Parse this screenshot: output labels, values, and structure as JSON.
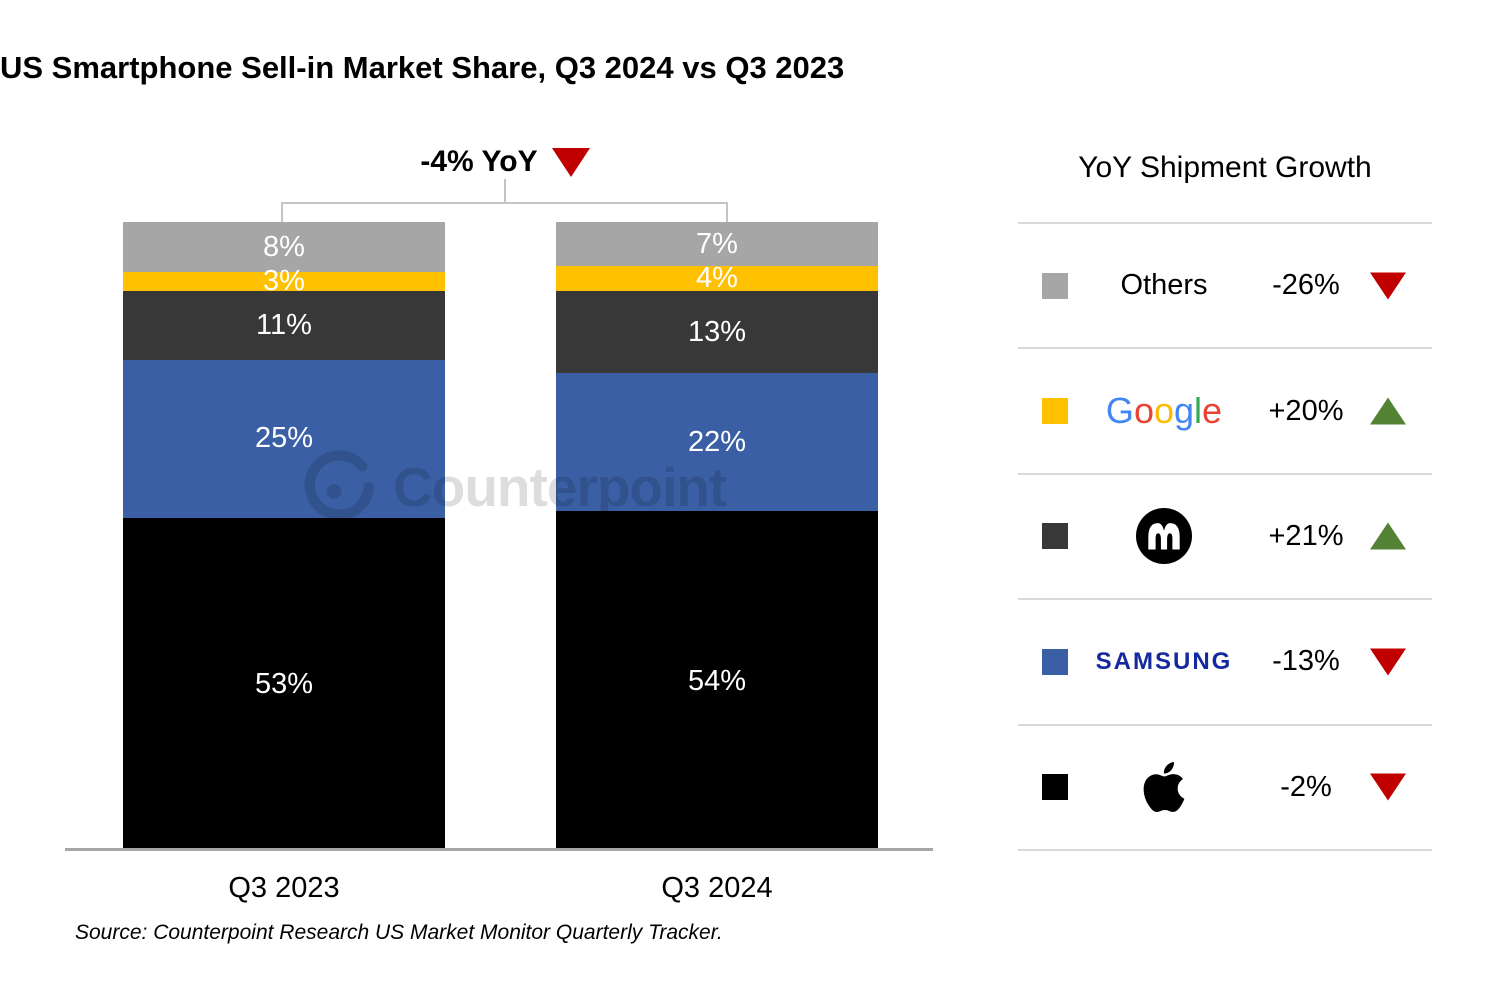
{
  "title": "US Smartphone Sell-in Market Share, Q3 2024 vs Q3 2023",
  "yoy_annotation": {
    "label": "-4% YoY",
    "direction": "down"
  },
  "legend_header": "YoY Shipment Growth",
  "watermark": "Counterpoint",
  "source": "Source: Counterpoint Research US Market Monitor Quarterly Tracker.",
  "colors": {
    "apple": "#000000",
    "samsung": "#3A5FA4",
    "motorola": "#383838",
    "google": "#FFC000",
    "others": "#A6A6A6",
    "negative_triangle": "#C00000",
    "positive_triangle": "#548235",
    "samsung_logo_text": "#1428A0",
    "axis_line": "#A6A6A6",
    "separator_line": "#D9D9D9"
  },
  "chart_data": {
    "type": "bar",
    "stacked": true,
    "title": "US Smartphone Sell-in Market Share, Q3 2024 vs Q3 2023",
    "categories": [
      "Q3 2023",
      "Q3 2024"
    ],
    "ylim": [
      0,
      100
    ],
    "grid": false,
    "total_change_label": "-4% YoY",
    "series": [
      {
        "name": "Apple",
        "color": "#000000",
        "values": [
          53,
          54
        ],
        "labels": [
          "53%",
          "54%"
        ]
      },
      {
        "name": "Samsung",
        "color": "#3A5FA4",
        "values": [
          25,
          22
        ],
        "labels": [
          "25%",
          "22%"
        ]
      },
      {
        "name": "Motorola",
        "color": "#383838",
        "values": [
          11,
          13
        ],
        "labels": [
          "11%",
          "13%"
        ]
      },
      {
        "name": "Google",
        "color": "#FFC000",
        "values": [
          3,
          4
        ],
        "labels": [
          "3%",
          "4%"
        ]
      },
      {
        "name": "Others",
        "color": "#A6A6A6",
        "values": [
          8,
          7
        ],
        "labels": [
          "8%",
          "7%"
        ]
      }
    ]
  },
  "legend_rows": [
    {
      "brand": "Others",
      "logo": "others-text",
      "swatch": "#A6A6A6",
      "change": "-26%",
      "direction": "down"
    },
    {
      "brand": "Google",
      "logo": "google-logo",
      "swatch": "#FFC000",
      "change": "+20%",
      "direction": "up"
    },
    {
      "brand": "Motorola",
      "logo": "motorola-logo",
      "swatch": "#383838",
      "change": "+21%",
      "direction": "up"
    },
    {
      "brand": "Samsung",
      "logo": "samsung-logo",
      "swatch": "#3A5FA4",
      "change": "-13%",
      "direction": "down",
      "brand_display": "SAMSUNG"
    },
    {
      "brand": "Apple",
      "logo": "apple-logo",
      "swatch": "#000000",
      "change": "-2%",
      "direction": "down"
    }
  ],
  "google_letters": [
    [
      "G",
      "#4285F4"
    ],
    [
      "o",
      "#EA4335"
    ],
    [
      "o",
      "#FBBC05"
    ],
    [
      "g",
      "#4285F4"
    ],
    [
      "l",
      "#34A853"
    ],
    [
      "e",
      "#EA4335"
    ]
  ]
}
